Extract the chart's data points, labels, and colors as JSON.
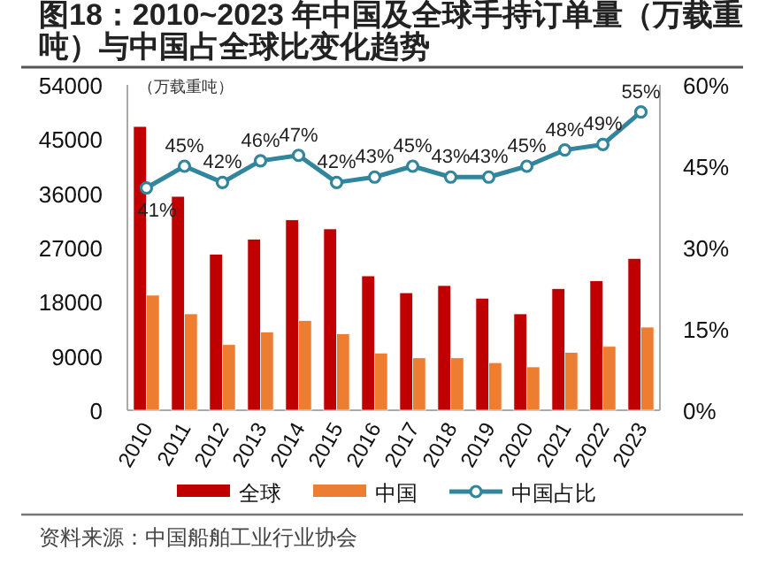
{
  "chart_data": {
    "type": "bar",
    "title": "图18：2010~2023 年中国及全球手持订单量（万载重吨）与中国占全球比变化趋势",
    "ylabel": "（万载重吨）",
    "categories": [
      "2010",
      "2011",
      "2012",
      "2013",
      "2014",
      "2015",
      "2016",
      "2017",
      "2018",
      "2019",
      "2020",
      "2021",
      "2022",
      "2023"
    ],
    "series": [
      {
        "name": "全球",
        "color": "#c00000",
        "values": [
          47100,
          35500,
          25900,
          28400,
          31600,
          30100,
          22300,
          19500,
          20700,
          18600,
          16000,
          20200,
          21500,
          25200
        ]
      },
      {
        "name": "中国",
        "color": "#ed7d31",
        "values": [
          19100,
          16000,
          10900,
          13000,
          14900,
          12700,
          9500,
          8700,
          8700,
          7900,
          7200,
          9600,
          10600,
          13800
        ]
      },
      {
        "name": "中国占比",
        "type": "line",
        "axis": "y2",
        "color": "#31859c",
        "marker": "circle",
        "values": [
          41,
          45,
          42,
          46,
          47,
          42,
          43,
          45,
          43,
          43,
          45,
          48,
          49,
          55
        ],
        "value_labels": [
          "41%",
          "45%",
          "42%",
          "46%",
          "47%",
          "42%",
          "43%",
          "45%",
          "43%",
          "43%",
          "45%",
          "48%",
          "49%",
          "55%"
        ]
      }
    ],
    "ylim": [
      0,
      54000
    ],
    "yticks": [
      0,
      9000,
      18000,
      27000,
      36000,
      45000,
      54000
    ],
    "y2lim": [
      0,
      60
    ],
    "y2ticks": [
      {
        "value": 0,
        "label": "0%"
      },
      {
        "value": 15,
        "label": "15%"
      },
      {
        "value": 30,
        "label": "30%"
      },
      {
        "value": 45,
        "label": "45%"
      },
      {
        "value": 60,
        "label": "60%"
      }
    ],
    "grid": false,
    "legend": "bottom",
    "annotations": [
      "资料来源：中国船舶工业行业协会"
    ]
  }
}
